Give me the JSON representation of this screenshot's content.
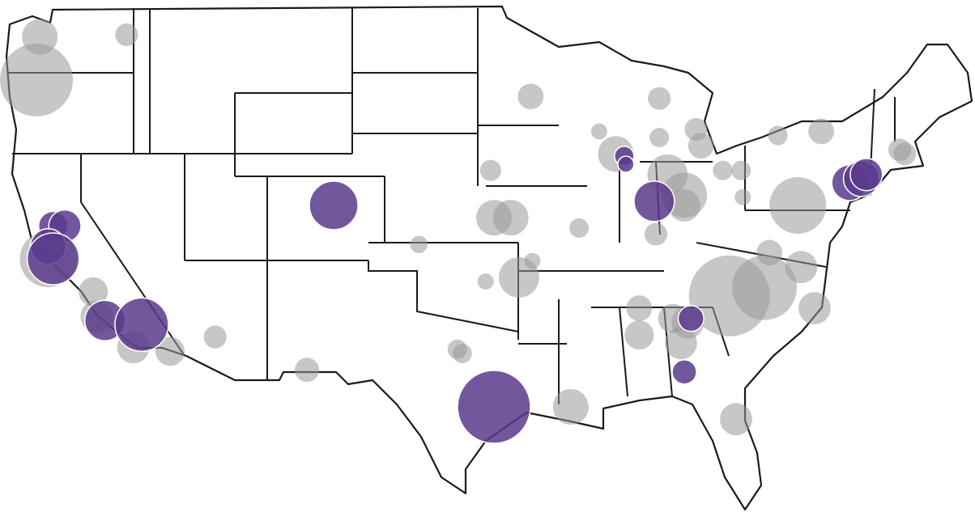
{
  "chart_data": {
    "type": "bubble-map",
    "series": [
      {
        "color": "#999999",
        "lon": [
          -122.8,
          -123.0,
          -117.6,
          -122.3,
          -119.6,
          -119.4,
          -117.2,
          -115.0,
          -112.3,
          -106.8,
          -100.1,
          -95.8,
          -95.6,
          -94.6,
          -94.1,
          -96.1,
          -93.3,
          -97.8,
          -97.5,
          -91.0,
          -93.4,
          -89.3,
          -88.3,
          -85.7,
          -85.7,
          -83.5,
          -83.2,
          -85.2,
          -84.2,
          -84.2,
          -81.9,
          -80.8,
          -80.7,
          -77.4,
          -78.6,
          -76.0,
          -71.3,
          -71.0,
          -85.9,
          -81.5,
          -79.4,
          -77.2,
          -76.4,
          -86.9,
          -86.9,
          -84.9,
          -84.0,
          -84.4,
          -79.1,
          -81.1,
          -90.5
        ],
        "lat": [
          47.8,
          45.7,
          47.9,
          37.0,
          35.4,
          34.2,
          32.7,
          32.5,
          33.2,
          31.6,
          37.7,
          41.3,
          39.0,
          39.0,
          36.1,
          35.9,
          36.9,
          32.6,
          32.4,
          29.8,
          44.9,
          43.2,
          42.1,
          44.8,
          42.9,
          43.3,
          42.5,
          41.1,
          39.6,
          40.1,
          41.3,
          41.3,
          40.0,
          39.6,
          43.0,
          43.2,
          42.3,
          42.1,
          38.2,
          35.2,
          35.6,
          36.6,
          34.6,
          34.6,
          33.3,
          34.1,
          33.9,
          32.9,
          37.3,
          29.2,
          38.5
        ],
        "size": [
          54,
          225,
          22,
          136,
          36,
          44,
          44,
          36,
          22,
          25,
          13,
          19,
          54,
          54,
          69,
          11,
          11,
          16,
          16,
          54,
          28,
          11,
          54,
          22,
          16,
          22,
          28,
          69,
          44,
          87,
          16,
          16,
          11,
          136,
          16,
          28,
          22,
          22,
          22,
          278,
          178,
          44,
          44,
          28,
          36,
          36,
          44,
          44,
          28,
          44,
          16
        ]
      },
      {
        "color": "#5b3a8c",
        "lon": [
          -122.0,
          -121.3,
          -122.3,
          -122.0,
          -118.9,
          -116.7,
          -105.2,
          -87.8,
          -87.7,
          -86.0,
          -83.8,
          -84.2,
          -95.6,
          -74.3,
          -73.6,
          -73.3
        ],
        "lat": [
          38.6,
          38.6,
          37.6,
          37.0,
          34.0,
          33.8,
          39.6,
          42.0,
          41.6,
          39.8,
          34.1,
          31.5,
          29.8,
          40.7,
          40.9,
          41.1
        ],
        "size": [
          36,
          44,
          54,
          114,
          69,
          121,
          100,
          16,
          11,
          69,
          28,
          25,
          225,
          54,
          54,
          44
        ]
      }
    ]
  }
}
